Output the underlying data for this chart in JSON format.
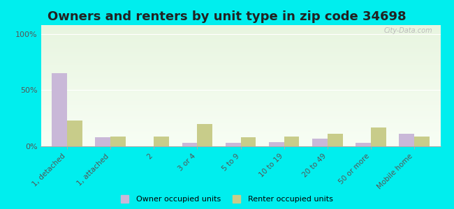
{
  "title": "Owners and renters by unit type in zip code 34698",
  "categories": [
    "1, detached",
    "1, attached",
    "2",
    "3 or 4",
    "5 to 9",
    "10 to 19",
    "20 to 49",
    "50 or more",
    "Mobile home"
  ],
  "owner_values": [
    65,
    8,
    0,
    3,
    3,
    4,
    7,
    3,
    11
  ],
  "renter_values": [
    23,
    9,
    9,
    20,
    8,
    9,
    11,
    17,
    9
  ],
  "owner_color": "#c9b8d8",
  "renter_color": "#c8cc8a",
  "outer_bg": "#00eeee",
  "plot_bg_top": "#e8f5e0",
  "plot_bg_bottom": "#f8fef5",
  "yticks": [
    0,
    50,
    100
  ],
  "ylim": [
    0,
    108
  ],
  "ylabel_labels": [
    "0%",
    "50%",
    "100%"
  ],
  "legend_owner": "Owner occupied units",
  "legend_renter": "Renter occupied units",
  "title_fontsize": 13,
  "watermark": "City-Data.com"
}
